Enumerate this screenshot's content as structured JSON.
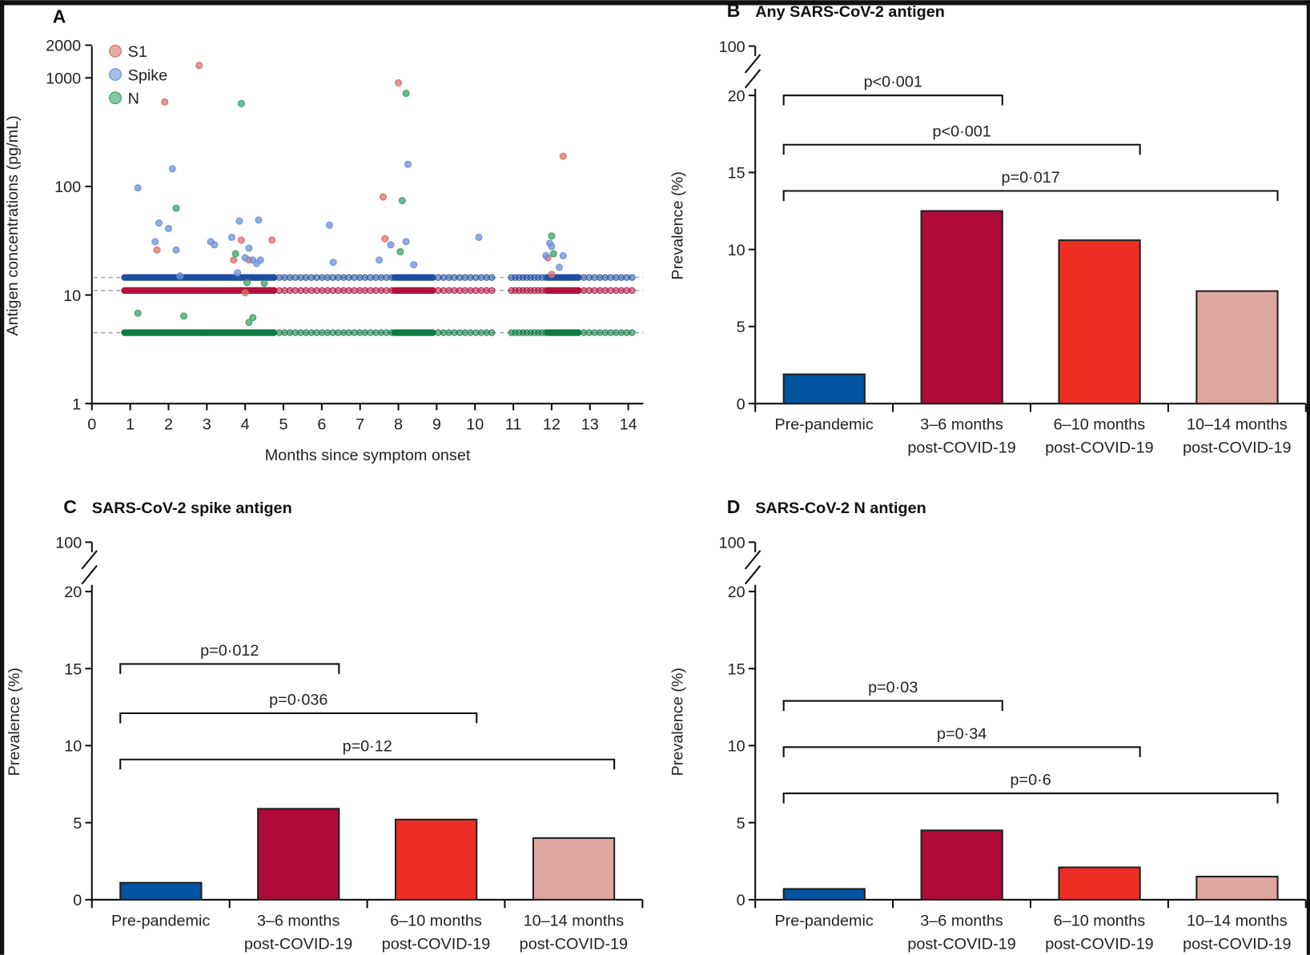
{
  "chart_data": [
    {
      "type": "scatter",
      "panel_letter": "A",
      "xlabel": "Months since symptom onset",
      "ylabel": "Antigen concentrations (pg/mL)",
      "yscale": "log",
      "xlim": [
        0,
        14
      ],
      "ylim": [
        1,
        2000
      ],
      "xticks": [
        "0",
        "1",
        "2",
        "3",
        "4",
        "5",
        "6",
        "7",
        "8",
        "9",
        "10",
        "11",
        "12",
        "13",
        "14"
      ],
      "yticks": [
        {
          "value": 1,
          "label": "1"
        },
        {
          "value": 10,
          "label": "10"
        },
        {
          "value": 100,
          "label": "100"
        },
        {
          "value": 1000,
          "label": "1000"
        },
        {
          "value": 2000,
          "label": "2000"
        }
      ],
      "legend": {
        "placement": "top-left",
        "entries": [
          "S1",
          "Spike",
          "N"
        ]
      },
      "series": [
        {
          "name": "S1",
          "color": "#d9706f",
          "baseline_color": "#b3123f",
          "detection_limit": 11,
          "points": [
            [
              1.7,
              26
            ],
            [
              1.9,
              600
            ],
            [
              2.8,
              1300
            ],
            [
              3.7,
              21
            ],
            [
              3.9,
              32
            ],
            [
              4.0,
              10.5
            ],
            [
              4.1,
              21
            ],
            [
              4.7,
              32
            ],
            [
              7.6,
              80
            ],
            [
              7.65,
              33
            ],
            [
              8.0,
              900
            ],
            [
              11.9,
              22
            ],
            [
              12.0,
              15.5
            ],
            [
              12.3,
              190
            ]
          ]
        },
        {
          "name": "Spike",
          "color": "#6f8fd6",
          "baseline_color": "#1f4fa0",
          "detection_limit": 14.5,
          "points": [
            [
              1.2,
              97
            ],
            [
              1.65,
              31
            ],
            [
              1.75,
              46
            ],
            [
              2.0,
              41
            ],
            [
              2.1,
              145
            ],
            [
              2.2,
              26
            ],
            [
              2.3,
              15
            ],
            [
              3.1,
              31
            ],
            [
              3.2,
              29
            ],
            [
              3.65,
              34
            ],
            [
              3.8,
              16
            ],
            [
              3.85,
              48
            ],
            [
              4.0,
              22
            ],
            [
              4.1,
              27
            ],
            [
              4.2,
              21
            ],
            [
              4.3,
              19.5
            ],
            [
              4.35,
              49
            ],
            [
              4.4,
              21
            ],
            [
              6.2,
              44
            ],
            [
              6.3,
              20
            ],
            [
              7.5,
              21
            ],
            [
              7.8,
              29
            ],
            [
              8.2,
              31
            ],
            [
              8.25,
              160
            ],
            [
              8.4,
              19
            ],
            [
              10.1,
              34
            ],
            [
              11.85,
              23
            ],
            [
              11.95,
              30
            ],
            [
              12.0,
              28
            ],
            [
              12.2,
              18
            ],
            [
              12.3,
              23
            ]
          ]
        },
        {
          "name": "N",
          "color": "#3ea06b",
          "baseline_color": "#0f7a45",
          "detection_limit": 4.5,
          "points": [
            [
              1.2,
              6.8
            ],
            [
              2.2,
              63
            ],
            [
              2.4,
              6.4
            ],
            [
              3.75,
              24
            ],
            [
              3.9,
              580
            ],
            [
              4.05,
              13
            ],
            [
              4.1,
              5.6
            ],
            [
              4.2,
              6.2
            ],
            [
              4.5,
              12.8
            ],
            [
              8.05,
              25
            ],
            [
              8.1,
              74
            ],
            [
              8.2,
              720
            ],
            [
              12.0,
              35
            ],
            [
              12.05,
              24
            ]
          ]
        }
      ]
    },
    {
      "type": "bar",
      "panel_letter": "B",
      "title": "Any SARS-CoV-2 antigen",
      "ylabel": "Prevalence (%)",
      "categories": [
        [
          "Pre-pandemic",
          ""
        ],
        [
          "3–6 months",
          "post-COVID-19"
        ],
        [
          "6–10 months",
          "post-COVID-19"
        ],
        [
          "10–14 months",
          "post-COVID-19"
        ]
      ],
      "values": [
        1.9,
        12.5,
        10.6,
        7.3
      ],
      "colors": [
        "#0054a0",
        "#af0a3a",
        "#ee2e24",
        "#e0a6a1"
      ],
      "ylim": [
        0,
        20
      ],
      "yticks": [
        "0",
        "5",
        "10",
        "15",
        "20",
        "100"
      ],
      "axis_break": "20 to 100",
      "comparisons": [
        {
          "from": 0,
          "to": 1,
          "label": "p<0·001",
          "level": 20
        },
        {
          "from": 0,
          "to": 2,
          "label": "p<0·001",
          "level": 16.8
        },
        {
          "from": 0,
          "to": 3,
          "label": "p=0·017",
          "level": 13.8
        }
      ]
    },
    {
      "type": "bar",
      "panel_letter": "C",
      "title": "SARS-CoV-2 spike antigen",
      "ylabel": "Prevalence (%)",
      "categories": [
        [
          "Pre-pandemic",
          ""
        ],
        [
          "3–6 months",
          "post-COVID-19"
        ],
        [
          "6–10 months",
          "post-COVID-19"
        ],
        [
          "10–14 months",
          "post-COVID-19"
        ]
      ],
      "values": [
        1.1,
        5.9,
        5.2,
        4.0
      ],
      "colors": [
        "#0054a0",
        "#af0a3a",
        "#ee2e24",
        "#e0a6a1"
      ],
      "ylim": [
        0,
        20
      ],
      "yticks": [
        "0",
        "5",
        "10",
        "15",
        "20",
        "100"
      ],
      "axis_break": "20 to 100",
      "comparisons": [
        {
          "from": 0,
          "to": 1,
          "label": "p=0·012",
          "level": 15.3
        },
        {
          "from": 0,
          "to": 2,
          "label": "p=0·036",
          "level": 12.1
        },
        {
          "from": 0,
          "to": 3,
          "label": "p=0·12",
          "level": 9.1
        }
      ]
    },
    {
      "type": "bar",
      "panel_letter": "D",
      "title": "SARS-CoV-2 N antigen",
      "ylabel": "Prevalence (%)",
      "categories": [
        [
          "Pre-pandemic",
          ""
        ],
        [
          "3–6 months",
          "post-COVID-19"
        ],
        [
          "6–10 months",
          "post-COVID-19"
        ],
        [
          "10–14 months",
          "post-COVID-19"
        ]
      ],
      "values": [
        0.7,
        4.5,
        2.1,
        1.5
      ],
      "colors": [
        "#0054a0",
        "#af0a3a",
        "#ee2e24",
        "#e0a6a1"
      ],
      "ylim": [
        0,
        20
      ],
      "yticks": [
        "0",
        "5",
        "10",
        "15",
        "20",
        "100"
      ],
      "axis_break": "20 to 100",
      "comparisons": [
        {
          "from": 0,
          "to": 1,
          "label": "p=0·03",
          "level": 12.9
        },
        {
          "from": 0,
          "to": 2,
          "label": "p=0·34",
          "level": 9.9
        },
        {
          "from": 0,
          "to": 3,
          "label": "p=0·6",
          "level": 6.9
        }
      ]
    }
  ]
}
